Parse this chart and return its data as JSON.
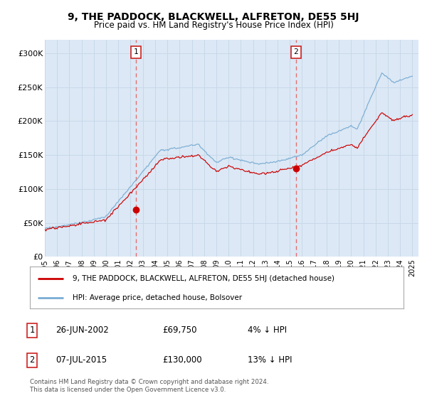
{
  "title": "9, THE PADDOCK, BLACKWELL, ALFRETON, DE55 5HJ",
  "subtitle": "Price paid vs. HM Land Registry's House Price Index (HPI)",
  "legend_line1": "9, THE PADDOCK, BLACKWELL, ALFRETON, DE55 5HJ (detached house)",
  "legend_line2": "HPI: Average price, detached house, Bolsover",
  "transaction1_date": "26-JUN-2002",
  "transaction1_price": "£69,750",
  "transaction1_hpi": "4% ↓ HPI",
  "transaction2_date": "07-JUL-2015",
  "transaction2_price": "£130,000",
  "transaction2_hpi": "13% ↓ HPI",
  "footer": "Contains HM Land Registry data © Crown copyright and database right 2024.\nThis data is licensed under the Open Government Licence v3.0.",
  "hpi_color": "#7aadd4",
  "price_color": "#cc0000",
  "marker_color": "#cc0000",
  "vline_color": "#e07070",
  "background_color": "#ffffff",
  "plot_bg_color": "#dce8f5",
  "grid_color": "#c8d8e8",
  "ylim": [
    0,
    320000
  ],
  "yticks": [
    0,
    50000,
    100000,
    150000,
    200000,
    250000,
    300000
  ],
  "ytick_labels": [
    "£0",
    "£50K",
    "£100K",
    "£150K",
    "£200K",
    "£250K",
    "£300K"
  ],
  "year_start": 1995,
  "year_end": 2025
}
